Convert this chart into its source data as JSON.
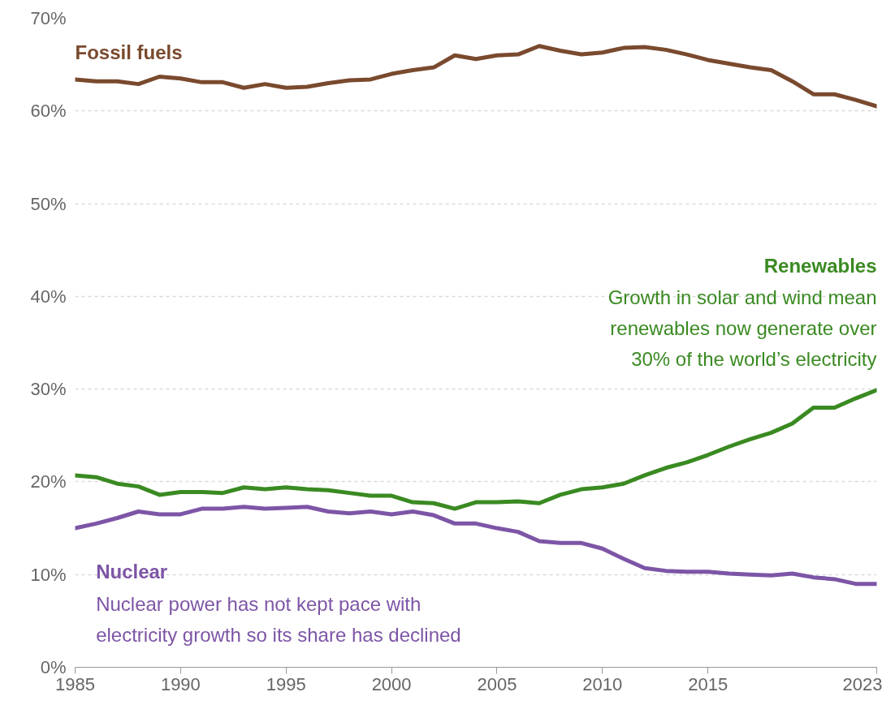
{
  "chart_data": {
    "type": "line",
    "x": [
      1985,
      1986,
      1987,
      1988,
      1989,
      1990,
      1991,
      1992,
      1993,
      1994,
      1995,
      1996,
      1997,
      1998,
      1999,
      2000,
      2001,
      2002,
      2003,
      2004,
      2005,
      2006,
      2007,
      2008,
      2009,
      2010,
      2011,
      2012,
      2013,
      2014,
      2015,
      2016,
      2017,
      2018,
      2019,
      2020,
      2021,
      2022,
      2023
    ],
    "series": [
      {
        "name": "Fossil fuels",
        "color": "#7a4a2e",
        "values": [
          63.4,
          63.2,
          63.2,
          62.9,
          63.7,
          63.5,
          63.1,
          63.1,
          62.5,
          62.9,
          62.5,
          62.6,
          63.0,
          63.3,
          63.4,
          64.0,
          64.4,
          64.7,
          66.0,
          65.6,
          66.0,
          66.1,
          67.0,
          66.5,
          66.1,
          66.3,
          66.8,
          66.9,
          66.6,
          66.1,
          65.5,
          65.1,
          64.7,
          64.4,
          63.2,
          61.8,
          61.8,
          61.2,
          60.5
        ]
      },
      {
        "name": "Renewables",
        "color": "#3a8a22",
        "values": [
          20.7,
          20.5,
          19.8,
          19.5,
          18.6,
          18.9,
          18.9,
          18.8,
          19.4,
          19.2,
          19.4,
          19.2,
          19.1,
          18.8,
          18.5,
          18.5,
          17.8,
          17.7,
          17.1,
          17.8,
          17.8,
          17.9,
          17.7,
          18.6,
          19.2,
          19.4,
          19.8,
          20.7,
          21.5,
          22.1,
          22.9,
          23.8,
          24.6,
          25.3,
          26.3,
          28.0,
          28.0,
          29.0,
          29.9
        ]
      },
      {
        "name": "Nuclear",
        "color": "#7d55a6",
        "values": [
          15.0,
          15.5,
          16.1,
          16.8,
          16.5,
          16.5,
          17.1,
          17.1,
          17.3,
          17.1,
          17.2,
          17.3,
          16.8,
          16.6,
          16.8,
          16.5,
          16.8,
          16.4,
          15.5,
          15.5,
          15.0,
          14.6,
          13.6,
          13.4,
          13.4,
          12.8,
          11.7,
          10.7,
          10.4,
          10.3,
          10.3,
          10.1,
          10.0,
          9.9,
          10.1,
          9.7,
          9.5,
          9.0,
          9.0
        ]
      }
    ],
    "annotations": [
      "Growth in solar and wind mean renewables now generate over 30% of the world’s electricity",
      "Nuclear power has not kept pace with electricity growth so its share has declined"
    ],
    "xlim": [
      1985,
      2023
    ],
    "xticks": [
      1985,
      1990,
      1995,
      2000,
      2005,
      2010,
      2015,
      2023
    ],
    "ylim": [
      0,
      70
    ],
    "yticks": [
      {
        "value": 0,
        "label": "0%"
      },
      {
        "value": 10,
        "label": "10%"
      },
      {
        "value": 20,
        "label": "20%"
      },
      {
        "value": 30,
        "label": "30%"
      },
      {
        "value": 40,
        "label": "40%"
      },
      {
        "value": 50,
        "label": "50%"
      },
      {
        "value": 60,
        "label": "60%"
      },
      {
        "value": 70,
        "label": "70%"
      }
    ],
    "grid": "y",
    "line_style": "solid",
    "marker": "none"
  }
}
